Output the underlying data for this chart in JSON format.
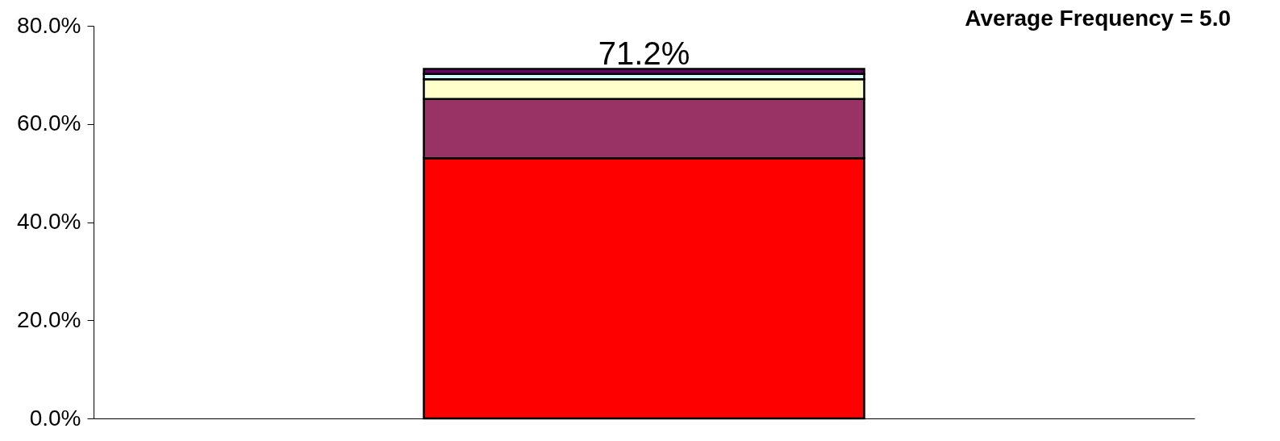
{
  "chart_data": {
    "type": "bar",
    "title": "Average Frequency = 5.0",
    "stacked": true,
    "categories": [
      null
    ],
    "series": [
      {
        "color": "#ff0000",
        "values": [
          53.0
        ]
      },
      {
        "color": "#993366",
        "values": [
          12.1
        ]
      },
      {
        "color": "#ffffcc",
        "values": [
          4.0
        ]
      },
      {
        "color": "#ccffff",
        "values": [
          1.1
        ]
      },
      {
        "color": "#660066",
        "values": [
          1.0
        ]
      }
    ],
    "totals": [
      "71.2%"
    ],
    "ylim": [
      0,
      80
    ],
    "yticks": [
      {
        "value": 0,
        "label": "0.0%"
      },
      {
        "value": 20,
        "label": "20.0%"
      },
      {
        "value": 40,
        "label": "40.0%"
      },
      {
        "value": 60,
        "label": "60.0%"
      },
      {
        "value": 80,
        "label": "80.0%"
      }
    ],
    "grid": false,
    "legend": false
  }
}
